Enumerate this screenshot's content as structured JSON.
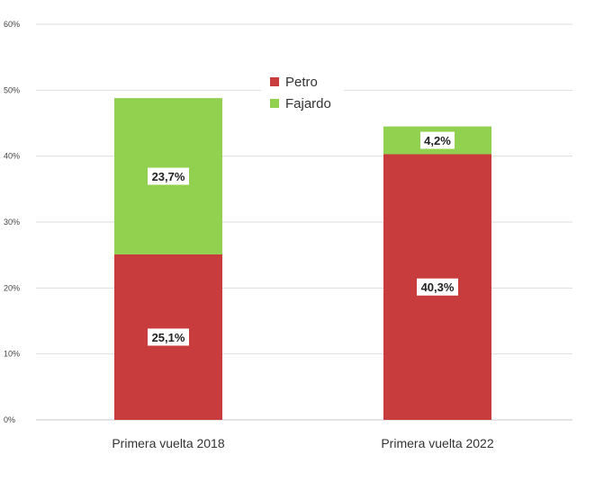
{
  "chart_data": {
    "type": "bar",
    "stacked": true,
    "categories": [
      "Primera vuelta 2018",
      "Primera vuelta 2022"
    ],
    "series": [
      {
        "name": "Petro",
        "values": [
          25.1,
          40.3
        ],
        "labels": [
          "25,1%",
          "40,3%"
        ],
        "color": "#c93c3e"
      },
      {
        "name": "Fajardo",
        "values": [
          23.7,
          4.2
        ],
        "labels": [
          "23,7%",
          "4,2%"
        ],
        "color": "#92d050"
      }
    ],
    "ylim": [
      0,
      60
    ],
    "yticks": [
      0,
      10,
      20,
      30,
      40,
      50,
      60
    ],
    "ytick_labels": [
      "0%",
      "10%",
      "20%",
      "30%",
      "40%",
      "50%",
      "60%"
    ],
    "grid": true,
    "legend_position": "top-center"
  }
}
